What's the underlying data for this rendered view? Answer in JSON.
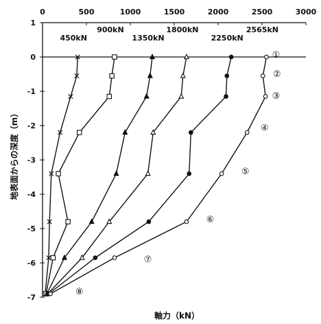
{
  "chart_data": {
    "type": "line",
    "xlabel": "軸力（kN）",
    "ylabel": "地表面からの深度（m）",
    "xlim": [
      0,
      3000
    ],
    "ylim": [
      -7,
      1
    ],
    "x_ticks": [
      "0",
      "500",
      "1000",
      "1500",
      "2000",
      "2500",
      "3000"
    ],
    "y_ticks": [
      "1",
      "0",
      "-1",
      "-2",
      "-3",
      "-4",
      "-5",
      "-6",
      "-7"
    ],
    "x_axis_position": "top",
    "reference_line_y": 0,
    "grid": false,
    "series": [
      {
        "name": "450kN",
        "marker": "x",
        "x": [
          400,
          390,
          320,
          200,
          100,
          80,
          70,
          30
        ],
        "y": [
          0,
          -0.55,
          -1.15,
          -2.2,
          -3.4,
          -4.8,
          -5.85,
          -6.9
        ]
      },
      {
        "name": "900kN",
        "marker": "square",
        "x": [
          820,
          790,
          760,
          420,
          180,
          290,
          120,
          40
        ],
        "y": [
          0,
          -0.55,
          -1.15,
          -2.2,
          -3.4,
          -4.8,
          -5.85,
          -6.9
        ]
      },
      {
        "name": "1350kN",
        "marker": "triangle-filled",
        "x": [
          1250,
          1225,
          1185,
          940,
          840,
          560,
          250,
          50
        ],
        "y": [
          0,
          -0.55,
          -1.15,
          -2.2,
          -3.4,
          -4.8,
          -5.85,
          -6.9
        ]
      },
      {
        "name": "1800kN",
        "marker": "triangle-open",
        "x": [
          1640,
          1600,
          1580,
          1260,
          1200,
          760,
          450,
          60
        ],
        "y": [
          0,
          -0.55,
          -1.15,
          -2.2,
          -3.4,
          -4.8,
          -5.85,
          -6.9
        ]
      },
      {
        "name": "2250kN",
        "marker": "circle-filled",
        "x": [
          2150,
          2100,
          2090,
          1690,
          1670,
          1210,
          600,
          70
        ],
        "y": [
          0,
          -0.55,
          -1.15,
          -2.2,
          -3.4,
          -4.8,
          -5.85,
          -6.9
        ]
      },
      {
        "name": "2565kN",
        "marker": "circle-open",
        "x": [
          2550,
          2510,
          2540,
          2330,
          2040,
          1640,
          820,
          90
        ],
        "y": [
          0,
          -0.55,
          -1.15,
          -2.2,
          -3.4,
          -4.8,
          -5.85,
          -6.9
        ]
      }
    ],
    "annotations": [
      {
        "text": "①",
        "x": 2660,
        "y": 0.08
      },
      {
        "text": "②",
        "x": 2670,
        "y": -0.48
      },
      {
        "text": "③",
        "x": 2660,
        "y": -1.12
      },
      {
        "text": "④",
        "x": 2530,
        "y": -2.05
      },
      {
        "text": "⑤",
        "x": 2310,
        "y": -3.32
      },
      {
        "text": "⑥",
        "x": 1910,
        "y": -4.72
      },
      {
        "text": "⑦",
        "x": 1200,
        "y": -5.88
      },
      {
        "text": "⑧",
        "x": 420,
        "y": -6.82
      }
    ]
  }
}
